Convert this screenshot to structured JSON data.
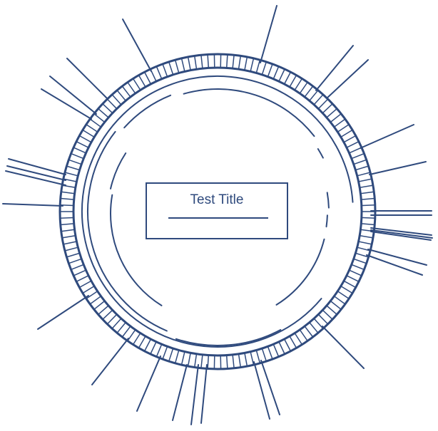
{
  "title": "Test Title",
  "colors": {
    "stroke": "#2f4a7d",
    "background": "#ffffff"
  }
}
